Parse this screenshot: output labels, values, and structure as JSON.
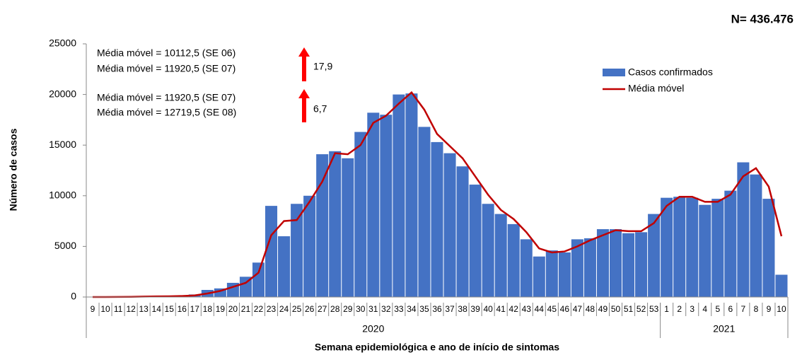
{
  "chart_data": {
    "type": "bar_line",
    "x_title": "Semana epidemiológica e ano de início de sintomas",
    "y_title": "Número de casos",
    "total_label": "N= 436.476",
    "annotations": [
      "Média móvel = 10112,5 (SE 06)",
      "Média móvel = 11920,5 (SE 07)",
      "17,9",
      "Média móvel = 11920,5 (SE 07)",
      "Média móvel = 12719,5 (SE 08)",
      "6,7"
    ],
    "categories": [
      "9",
      "10",
      "11",
      "12",
      "13",
      "14",
      "15",
      "16",
      "17",
      "18",
      "19",
      "20",
      "21",
      "22",
      "23",
      "24",
      "25",
      "26",
      "27",
      "28",
      "29",
      "30",
      "31",
      "32",
      "33",
      "34",
      "35",
      "36",
      "37",
      "38",
      "39",
      "40",
      "41",
      "42",
      "43",
      "44",
      "45",
      "46",
      "47",
      "48",
      "49",
      "50",
      "51",
      "52",
      "53",
      "1",
      "2",
      "3",
      "4",
      "5",
      "6",
      "7",
      "8",
      "9",
      "10"
    ],
    "x_groups": [
      "2020",
      "2021"
    ],
    "series": [
      {
        "name": "Casos confirmados",
        "type": "bar",
        "color": "#4472c4",
        "values": [
          0,
          0,
          10,
          50,
          60,
          70,
          80,
          150,
          250,
          700,
          850,
          1400,
          2000,
          3400,
          9000,
          6000,
          9200,
          10000,
          14100,
          14400,
          13700,
          16300,
          18200,
          18000,
          20000,
          20100,
          16800,
          15300,
          14200,
          12900,
          11100,
          9200,
          8200,
          7200,
          5700,
          4000,
          4600,
          4400,
          5700,
          5800,
          6700,
          6700,
          6300,
          6400,
          8200,
          9800,
          9900,
          9800,
          9100,
          9700,
          10500,
          13300,
          12100,
          9700,
          2200
        ]
      },
      {
        "name": "Média móvel",
        "type": "line",
        "color": "#c00000",
        "values": [
          0,
          0,
          5,
          20,
          40,
          60,
          70,
          100,
          160,
          350,
          600,
          1000,
          1400,
          2400,
          6100,
          7500,
          7600,
          9400,
          11400,
          14200,
          14100,
          15000,
          17200,
          17900,
          19100,
          20200,
          18500,
          16100,
          14900,
          13700,
          11900,
          10100,
          8600,
          7700,
          6400,
          4800,
          4400,
          4500,
          5000,
          5600,
          6100,
          6600,
          6500,
          6500,
          7300,
          9000,
          9900,
          9900,
          9400,
          9400,
          10112.5,
          11920.5,
          12719.5,
          10900,
          6000
        ]
      }
    ],
    "ylim": [
      0,
      25000
    ],
    "yticks": [
      0,
      5000,
      10000,
      15000,
      20000,
      25000
    ],
    "grid": false
  }
}
